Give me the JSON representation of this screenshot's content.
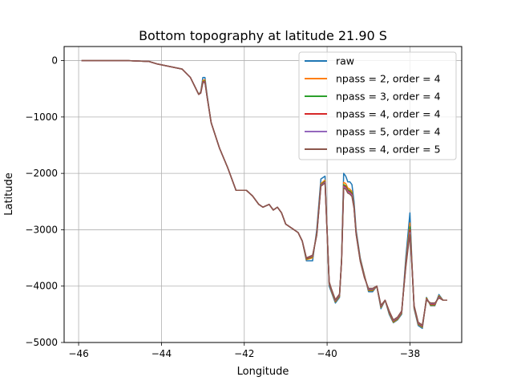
{
  "chart_data": {
    "type": "line",
    "title": "Bottom topography at latitude 21.90 S",
    "xlabel": "Longitude",
    "ylabel": "Latitude",
    "xlim": [
      -46.35,
      -36.75
    ],
    "ylim": [
      -5000,
      250
    ],
    "xticks": [
      -46,
      -44,
      -42,
      -40,
      -38
    ],
    "xtick_labels": [
      "−46",
      "−44",
      "−42",
      "−40",
      "−38"
    ],
    "yticks": [
      0,
      -1000,
      -2000,
      -3000,
      -4000,
      -5000
    ],
    "ytick_labels": [
      "0",
      "−1000",
      "−2000",
      "−3000",
      "−4000",
      "−5000"
    ],
    "grid": true,
    "legend_position": "top-right",
    "x": [
      -45.93,
      -44.8,
      -44.3,
      -44.1,
      -43.9,
      -43.7,
      -43.5,
      -43.3,
      -43.1,
      -43.05,
      -43.0,
      -42.95,
      -42.9,
      -42.8,
      -42.6,
      -42.4,
      -42.2,
      -42.05,
      -41.95,
      -41.8,
      -41.65,
      -41.55,
      -41.4,
      -41.3,
      -41.2,
      -41.1,
      -41.0,
      -40.9,
      -40.8,
      -40.7,
      -40.6,
      -40.5,
      -40.35,
      -40.25,
      -40.15,
      -40.05,
      -40.0,
      -39.95,
      -39.9,
      -39.8,
      -39.7,
      -39.65,
      -39.6,
      -39.55,
      -39.5,
      -39.45,
      -39.4,
      -39.35,
      -39.3,
      -39.2,
      -39.1,
      -39.0,
      -38.9,
      -38.8,
      -38.7,
      -38.6,
      -38.5,
      -38.4,
      -38.3,
      -38.2,
      -38.1,
      -38.05,
      -38.0,
      -37.95,
      -37.9,
      -37.8,
      -37.7,
      -37.6,
      -37.5,
      -37.4,
      -37.3,
      -37.2,
      -37.1
    ],
    "series": [
      {
        "name": "raw",
        "color": "#1f77b4",
        "values": [
          0,
          0,
          -15,
          -60,
          -90,
          -120,
          -150,
          -300,
          -600,
          -550,
          -300,
          -300,
          -600,
          -1100,
          -1550,
          -1900,
          -2300,
          -2300,
          -2300,
          -2400,
          -2550,
          -2600,
          -2550,
          -2650,
          -2600,
          -2700,
          -2900,
          -2950,
          -3000,
          -3050,
          -3200,
          -3550,
          -3550,
          -3000,
          -2100,
          -2050,
          -3000,
          -4000,
          -4100,
          -4300,
          -4200,
          -3500,
          -2000,
          -2050,
          -2150,
          -2150,
          -2200,
          -2500,
          -3000,
          -3500,
          -3800,
          -4100,
          -4100,
          -4000,
          -4400,
          -4250,
          -4500,
          -4650,
          -4600,
          -4500,
          -3500,
          -3100,
          -2700,
          -3600,
          -4400,
          -4700,
          -4750,
          -4200,
          -4350,
          -4350,
          -4150,
          -4250,
          -4250
        ]
      },
      {
        "name": "npass = 2, order = 4",
        "color": "#ff7f0e",
        "values": [
          0,
          0,
          -15,
          -60,
          -90,
          -120,
          -150,
          -300,
          -600,
          -560,
          -350,
          -340,
          -620,
          -1100,
          -1550,
          -1900,
          -2300,
          -2300,
          -2300,
          -2400,
          -2550,
          -2600,
          -2550,
          -2650,
          -2600,
          -2700,
          -2900,
          -2950,
          -3000,
          -3050,
          -3200,
          -3530,
          -3500,
          -3050,
          -2180,
          -2120,
          -3010,
          -3960,
          -4080,
          -4280,
          -4180,
          -3520,
          -2160,
          -2180,
          -2260,
          -2280,
          -2320,
          -2570,
          -3040,
          -3520,
          -3810,
          -4080,
          -4080,
          -4000,
          -4380,
          -4250,
          -4480,
          -4640,
          -4590,
          -4480,
          -3580,
          -3230,
          -2880,
          -3620,
          -4380,
          -4680,
          -4730,
          -4210,
          -4340,
          -4340,
          -4170,
          -4250,
          -4250
        ]
      },
      {
        "name": "npass = 3, order = 4",
        "color": "#2ca02c",
        "values": [
          0,
          0,
          -15,
          -60,
          -90,
          -120,
          -150,
          -300,
          -600,
          -565,
          -370,
          -360,
          -625,
          -1100,
          -1550,
          -1900,
          -2300,
          -2300,
          -2300,
          -2400,
          -2550,
          -2600,
          -2550,
          -2650,
          -2600,
          -2700,
          -2900,
          -2950,
          -3000,
          -3050,
          -3200,
          -3520,
          -3480,
          -3070,
          -2200,
          -2140,
          -3020,
          -3950,
          -4070,
          -4270,
          -4170,
          -3530,
          -2200,
          -2220,
          -2290,
          -2310,
          -2350,
          -2590,
          -3050,
          -3530,
          -3820,
          -4070,
          -4070,
          -4000,
          -4370,
          -4250,
          -4470,
          -4630,
          -4580,
          -4470,
          -3610,
          -3270,
          -2950,
          -3640,
          -4370,
          -4670,
          -4720,
          -4220,
          -4330,
          -4330,
          -4180,
          -4250,
          -4250
        ]
      },
      {
        "name": "npass = 4, order = 4",
        "color": "#d62728",
        "values": [
          0,
          0,
          -15,
          -60,
          -90,
          -120,
          -150,
          -300,
          -600,
          -570,
          -380,
          -370,
          -630,
          -1100,
          -1550,
          -1900,
          -2300,
          -2300,
          -2300,
          -2400,
          -2550,
          -2600,
          -2550,
          -2650,
          -2600,
          -2700,
          -2900,
          -2950,
          -3000,
          -3050,
          -3200,
          -3510,
          -3470,
          -3080,
          -2210,
          -2150,
          -3030,
          -3940,
          -4060,
          -4260,
          -4160,
          -3540,
          -2220,
          -2240,
          -2310,
          -2330,
          -2370,
          -2600,
          -3060,
          -3540,
          -3830,
          -4060,
          -4060,
          -4000,
          -4360,
          -4250,
          -4460,
          -4620,
          -4570,
          -4460,
          -3630,
          -3300,
          -3000,
          -3650,
          -4360,
          -4660,
          -4710,
          -4230,
          -4320,
          -4320,
          -4190,
          -4250,
          -4250
        ]
      },
      {
        "name": "npass = 5, order = 4",
        "color": "#9467bd",
        "values": [
          0,
          0,
          -15,
          -60,
          -90,
          -120,
          -150,
          -300,
          -600,
          -575,
          -390,
          -380,
          -635,
          -1100,
          -1550,
          -1900,
          -2300,
          -2300,
          -2300,
          -2400,
          -2550,
          -2600,
          -2550,
          -2650,
          -2600,
          -2700,
          -2900,
          -2950,
          -3000,
          -3050,
          -3200,
          -3500,
          -3460,
          -3090,
          -2220,
          -2160,
          -3040,
          -3930,
          -4050,
          -4250,
          -4150,
          -3550,
          -2240,
          -2260,
          -2330,
          -2350,
          -2390,
          -2610,
          -3070,
          -3550,
          -3840,
          -4050,
          -4050,
          -4000,
          -4350,
          -4250,
          -4450,
          -4610,
          -4560,
          -4450,
          -3650,
          -3330,
          -3050,
          -3660,
          -4350,
          -4650,
          -4700,
          -4240,
          -4310,
          -4310,
          -4200,
          -4250,
          -4250
        ]
      },
      {
        "name": "npass = 4, order = 5",
        "color": "#8c564b",
        "values": [
          0,
          0,
          -15,
          -60,
          -90,
          -120,
          -150,
          -300,
          -600,
          -575,
          -395,
          -385,
          -635,
          -1100,
          -1550,
          -1900,
          -2300,
          -2300,
          -2300,
          -2400,
          -2550,
          -2600,
          -2550,
          -2650,
          -2600,
          -2700,
          -2900,
          -2950,
          -3000,
          -3050,
          -3200,
          -3500,
          -3450,
          -3100,
          -2230,
          -2170,
          -3050,
          -3920,
          -4040,
          -4240,
          -4140,
          -3560,
          -2260,
          -2280,
          -2350,
          -2370,
          -2410,
          -2620,
          -3080,
          -3560,
          -3850,
          -4040,
          -4040,
          -4000,
          -4340,
          -4250,
          -4440,
          -4600,
          -4550,
          -4440,
          -3670,
          -3360,
          -3090,
          -3670,
          -4340,
          -4640,
          -4690,
          -4250,
          -4300,
          -4300,
          -4210,
          -4250,
          -4250
        ]
      }
    ]
  }
}
